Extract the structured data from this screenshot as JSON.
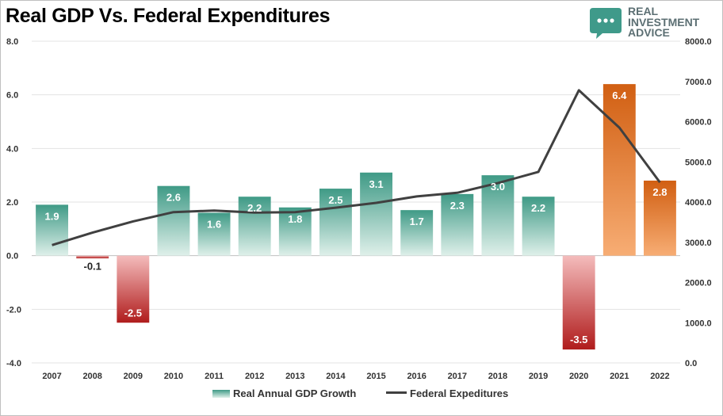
{
  "title": "Real GDP Vs. Federal Expenditures",
  "brand": {
    "line1": "REAL",
    "line2": "INVESTMENT",
    "line3": "ADVICE",
    "logo_icon": "speech-bubble-dots-icon",
    "color": "#5c6f73",
    "logo_color": "#3f9a8a"
  },
  "chart_data": {
    "type": "bar",
    "categories": [
      "2007",
      "2008",
      "2009",
      "2010",
      "2011",
      "2012",
      "2013",
      "2014",
      "2015",
      "2016",
      "2017",
      "2018",
      "2019",
      "2020",
      "2021",
      "2022"
    ],
    "series": [
      {
        "name": "Real Annual GDP Growth",
        "type": "bar",
        "axis": "left",
        "values": [
          1.9,
          -0.1,
          -2.5,
          2.6,
          1.6,
          2.2,
          1.8,
          2.5,
          3.1,
          1.7,
          2.3,
          3.0,
          2.2,
          -3.5,
          6.4,
          2.8
        ],
        "value_labels": [
          "1.9",
          "-0.1",
          "-2.5",
          "2.6",
          "1.6",
          "2.2",
          "1.8",
          "2.5",
          "3.1",
          "1.7",
          "2.3",
          "3.0",
          "2.2",
          "-3.5",
          "6.4",
          "2.8"
        ],
        "bar_colors": [
          "green",
          "red",
          "red",
          "green",
          "green",
          "green",
          "green",
          "green",
          "green",
          "green",
          "green",
          "green",
          "green",
          "red",
          "orange",
          "orange"
        ]
      },
      {
        "name": "Federal Expeditures",
        "type": "line",
        "axis": "right",
        "values": [
          2930,
          3240,
          3520,
          3750,
          3790,
          3740,
          3750,
          3860,
          3980,
          4140,
          4230,
          4470,
          4750,
          6780,
          5850,
          4490
        ]
      }
    ],
    "y_left": {
      "min": -4,
      "max": 8,
      "step": 2,
      "tick_labels": [
        "-4.0",
        "-2.0",
        "0.0",
        "2.0",
        "4.0",
        "6.0",
        "8.0"
      ]
    },
    "y_right": {
      "min": 0,
      "max": 8000,
      "step": 1000,
      "tick_labels": [
        "0.0",
        "1000.0",
        "2000.0",
        "3000.0",
        "4000.0",
        "5000.0",
        "6000.0",
        "7000.0",
        "8000.0"
      ]
    },
    "grid": true,
    "legend_position": "bottom",
    "colors": {
      "green_top": "#3f9a86",
      "green_bottom": "#dff0ea",
      "red_top": "#f4bcbc",
      "red_bottom": "#b01c1c",
      "orange_top": "#d15f12",
      "orange_bottom": "#f7ad74",
      "line": "#404040"
    }
  },
  "legend": {
    "bar_label": "Real Annual GDP Growth",
    "line_label": "Federal Expeditures"
  }
}
